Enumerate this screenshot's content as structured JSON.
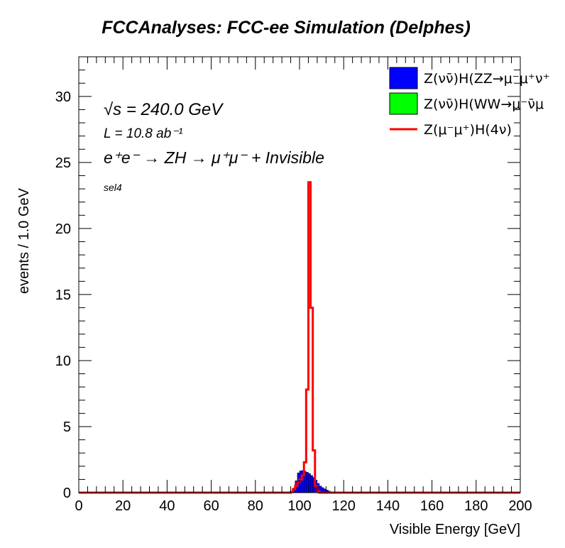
{
  "title": "FCCAnalyses: FCC-ee Simulation (Delphes)",
  "annotations": {
    "sqrt_s": "√s = 240.0 GeV",
    "lumi": "L = 10.8 ab⁻¹",
    "process": "e⁺e⁻ → ZH → μ⁺μ⁻ + Invisible",
    "selection": "sel4"
  },
  "chart_data": {
    "type": "histogram",
    "title": "FCCAnalyses: FCC-ee Simulation (Delphes)",
    "xlabel": "Visible Energy [GeV]",
    "ylabel": "events / 1.0 GeV",
    "xlim": [
      0,
      200
    ],
    "ylim": [
      0,
      33
    ],
    "x_ticks": [
      0,
      20,
      40,
      60,
      80,
      100,
      120,
      140,
      160,
      180,
      200
    ],
    "y_ticks": [
      0,
      5,
      10,
      15,
      20,
      25,
      30
    ],
    "bin_width": 1.0,
    "grid": false,
    "legend_position": "top-right",
    "series": [
      {
        "name": "Z(νν̄)H(ZZ→μ⁻μ⁺ν⁺",
        "style": "filled-stacked",
        "color": "#0000ff",
        "bins": [
          [
            96,
            0.08
          ],
          [
            97,
            0.35
          ],
          [
            98,
            0.9
          ],
          [
            99,
            1.5
          ],
          [
            100,
            1.65
          ],
          [
            101,
            1.68
          ],
          [
            102,
            1.62
          ],
          [
            103,
            1.55
          ],
          [
            104,
            1.45
          ],
          [
            105,
            1.3
          ],
          [
            106,
            1.15
          ],
          [
            107,
            0.95
          ],
          [
            108,
            0.7
          ],
          [
            109,
            0.5
          ],
          [
            110,
            0.38
          ],
          [
            111,
            0.28
          ],
          [
            112,
            0.2
          ],
          [
            113,
            0.12
          ],
          [
            114,
            0.07
          ],
          [
            115,
            0.04
          ]
        ]
      },
      {
        "name": "Z(νν̄)H(WW→μ⁻ν̄μ",
        "style": "filled-stacked",
        "color": "#00ff00",
        "bins": []
      },
      {
        "name": "Z(μ⁻μ⁺)H(4ν)",
        "style": "step-line",
        "color": "#ff0000",
        "bins": [
          [
            96,
            0.05
          ],
          [
            97,
            0.25
          ],
          [
            98,
            0.5
          ],
          [
            99,
            0.75
          ],
          [
            100,
            1.0
          ],
          [
            101,
            1.3
          ],
          [
            102,
            2.3
          ],
          [
            103,
            7.8
          ],
          [
            104,
            23.5
          ],
          [
            105,
            14.0
          ],
          [
            106,
            3.2
          ],
          [
            107,
            0.5
          ],
          [
            108,
            0.1
          ]
        ]
      }
    ]
  }
}
